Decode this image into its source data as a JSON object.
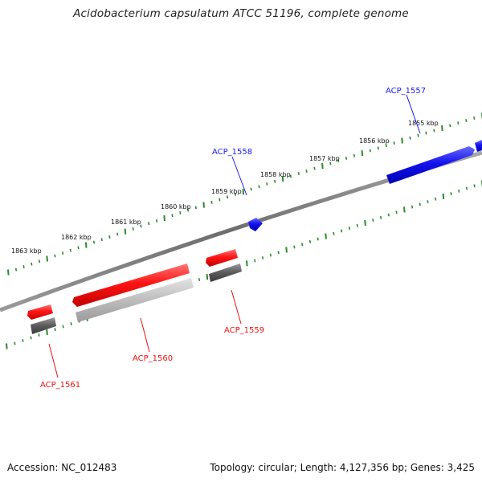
{
  "title": "Acidobacterium capsulatum ATCC 51196, complete genome",
  "footer": {
    "accession": "Accession: NC_012483",
    "summary": "Topology: circular; Length: 4,127,356 bp; Genes: 3,425"
  },
  "ruler": {
    "labels": [
      "1855 kbp",
      "1856 kbp",
      "1857 kbp",
      "1858 kbp",
      "1859 kbp",
      "1860 kbp",
      "1861 kbp",
      "1862 kbp",
      "1863 kbp"
    ],
    "tick_color": "#2a8a2a"
  },
  "genes": [
    {
      "name": "ACP_1557",
      "strand": "forward",
      "color": "#1a1aee"
    },
    {
      "name": "ACP_1558",
      "strand": "forward",
      "color": "#1a1aee"
    },
    {
      "name": "ACP_1559",
      "strand": "reverse",
      "color": "#ee1111"
    },
    {
      "name": "ACP_1560",
      "strand": "reverse",
      "color": "#ee1111"
    },
    {
      "name": "ACP_1561",
      "strand": "reverse",
      "color": "#ee1111"
    }
  ]
}
